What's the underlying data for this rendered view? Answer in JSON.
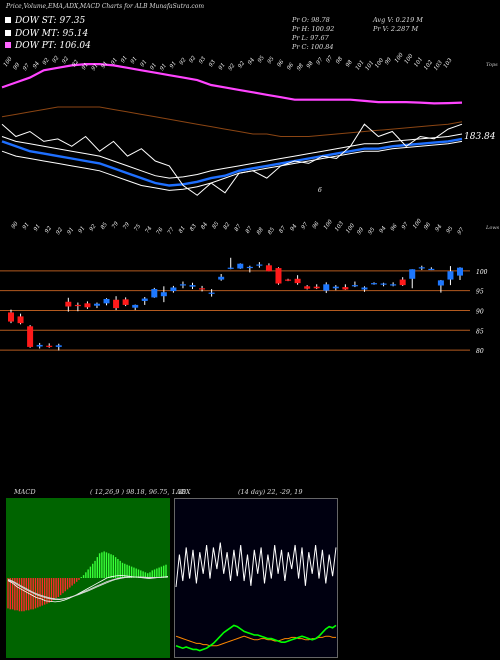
{
  "header": {
    "title": "Price,Volume,EMA,ADX,MACD Charts for ALB MunafaSutra.com"
  },
  "legend": [
    {
      "label": "DOW ST: 97.35",
      "color": "#ffffff"
    },
    {
      "label": "DOW MT: 95.14",
      "color": "#ffffff"
    },
    {
      "label": "DOW PT: 106.04",
      "color": "#ff66ff"
    }
  ],
  "stats": {
    "pr1": "Pr O: 98.78",
    "pr2": "Pr H: 100.92",
    "pr3": "Pr L: 97.67",
    "pr4": "Pr C: 100.84",
    "avg": "Avg V: 0.219 M",
    "prv": "Pr V: 2.287 M"
  },
  "chart_data": [
    {
      "type": "line",
      "name": "price_ema_panel",
      "top_labels": [
        "100",
        "99",
        "97",
        "94",
        "92",
        "92",
        "92",
        "92",
        "91",
        "91",
        "91",
        "91",
        "91",
        "91",
        "91",
        "91",
        "91",
        "91",
        "92",
        "92",
        "93",
        "93",
        "91",
        "92",
        "92",
        "94",
        "95",
        "95",
        "96",
        "96",
        "98",
        "98",
        "97",
        "97",
        "98",
        "98",
        "101",
        "101",
        "100",
        "99",
        "100",
        "100",
        "101",
        "102",
        "103",
        "103"
      ],
      "bottom_labels": [
        "90",
        "91",
        "91",
        "92",
        "92",
        "91",
        "91",
        "92",
        "85",
        "79",
        "79",
        "75",
        "74",
        "76",
        "77",
        "81",
        "83",
        "84",
        "85",
        "82",
        "87",
        "87",
        "88",
        "85",
        "87",
        "94",
        "97",
        "96",
        "100",
        "103",
        "100",
        "99",
        "95",
        "94",
        "96",
        "97",
        "100",
        "96",
        "94",
        "95",
        "97"
      ],
      "right_top_label": "Tops",
      "right_bottom_label": "Lows",
      "value_label": "183.84",
      "annotation": "6",
      "series": [
        {
          "color": "#ff44ff",
          "values": [
            190,
            192,
            194,
            197,
            198,
            199,
            199.5,
            199.5,
            199,
            198,
            197,
            196,
            195,
            194,
            193,
            191,
            190,
            189,
            188,
            187,
            186,
            185,
            185,
            185,
            185,
            185,
            184.5,
            184,
            184,
            184,
            183.8,
            183.5,
            183.6,
            183.8
          ]
        },
        {
          "color": "#8b4513",
          "values": [
            178,
            179,
            180,
            181,
            182,
            182,
            182,
            182,
            181,
            180,
            179,
            178,
            177,
            176,
            175,
            174,
            173,
            172,
            171,
            171,
            170,
            170,
            170,
            170.5,
            171,
            171.5,
            172,
            172.5,
            173,
            173.5,
            174,
            174.5,
            175,
            176
          ]
        },
        {
          "color": "#1e6fff",
          "values": [
            168,
            166,
            164,
            163,
            162,
            161,
            160,
            159,
            157,
            155,
            153,
            151,
            150,
            150.5,
            151.5,
            153,
            154,
            156,
            157,
            158,
            159,
            160,
            161,
            162,
            163,
            164,
            165,
            165,
            166,
            166.5,
            167,
            167.5,
            168,
            169
          ]
        },
        {
          "color": "#ffffff",
          "values": [
            164,
            162,
            161,
            160,
            159,
            158,
            157,
            156,
            154,
            152,
            150,
            149,
            148,
            148.5,
            149.5,
            151,
            153,
            155,
            156,
            157,
            158,
            159,
            160,
            161,
            162,
            163,
            164,
            164,
            165,
            165.5,
            166,
            166.5,
            167,
            168
          ]
        },
        {
          "color": "#ffffff",
          "values": [
            170,
            168,
            167,
            166,
            165,
            164,
            163,
            162,
            160,
            158,
            156,
            154,
            153,
            153.5,
            154.5,
            156,
            157,
            158,
            159,
            160,
            161,
            162,
            163,
            164,
            165,
            166,
            167,
            167,
            168,
            168.5,
            169,
            169.5,
            170,
            171
          ]
        },
        {
          "color": "#ffffff",
          "values": [
            175,
            170,
            172,
            168,
            169,
            166,
            170,
            164,
            168,
            162,
            165,
            160,
            158,
            150,
            146,
            151,
            147,
            155,
            156,
            153,
            158,
            160,
            159,
            162,
            161,
            166,
            175,
            170,
            172,
            166,
            170,
            169,
            173,
            175
          ]
        }
      ]
    },
    {
      "type": "candlestick",
      "name": "price_panel",
      "y_labels": [
        "100",
        "95",
        "90",
        "85",
        "80"
      ],
      "ylim": [
        78,
        104
      ],
      "candles": [
        {
          "o": 89.5,
          "h": 90.2,
          "l": 86.8,
          "c": 87.2
        },
        {
          "o": 88.5,
          "h": 89.2,
          "l": 86.5,
          "c": 86.8
        },
        {
          "o": 86.0,
          "h": 86.3,
          "l": 80.6,
          "c": 80.8
        },
        {
          "o": 80.9,
          "h": 81.8,
          "l": 80.4,
          "c": 81.3
        },
        {
          "o": 81.1,
          "h": 81.7,
          "l": 80.6,
          "c": 81.0
        },
        {
          "o": 80.8,
          "h": 81.6,
          "l": 79.9,
          "c": 81.2
        },
        {
          "o": 92.2,
          "h": 93.2,
          "l": 89.7,
          "c": 91.0
        },
        {
          "o": 91.4,
          "h": 92.0,
          "l": 89.8,
          "c": 91.2
        },
        {
          "o": 91.8,
          "h": 92.3,
          "l": 90.4,
          "c": 90.8
        },
        {
          "o": 91.2,
          "h": 92.0,
          "l": 90.6,
          "c": 91.7
        },
        {
          "o": 91.8,
          "h": 93.1,
          "l": 91.3,
          "c": 92.9
        },
        {
          "o": 92.7,
          "h": 93.6,
          "l": 90.1,
          "c": 90.6
        },
        {
          "o": 92.8,
          "h": 93.3,
          "l": 91.1,
          "c": 91.4
        },
        {
          "o": 90.7,
          "h": 91.5,
          "l": 90.1,
          "c": 91.4
        },
        {
          "o": 92.4,
          "h": 93.4,
          "l": 91.4,
          "c": 93.0
        },
        {
          "o": 93.3,
          "h": 95.7,
          "l": 93.2,
          "c": 95.4
        },
        {
          "o": 93.6,
          "h": 96.1,
          "l": 92.1,
          "c": 94.6
        },
        {
          "o": 94.9,
          "h": 96.2,
          "l": 94.5,
          "c": 95.8
        },
        {
          "o": 96.6,
          "h": 97.3,
          "l": 95.6,
          "c": 96.6
        },
        {
          "o": 96.0,
          "h": 97.0,
          "l": 95.4,
          "c": 96.4
        },
        {
          "o": 95.6,
          "h": 96.2,
          "l": 94.8,
          "c": 95.5
        },
        {
          "o": 94.5,
          "h": 95.4,
          "l": 93.5,
          "c": 94.5
        },
        {
          "o": 97.8,
          "h": 99.2,
          "l": 97.5,
          "c": 98.5
        },
        {
          "o": 100.7,
          "h": 103.3,
          "l": 100.4,
          "c": 100.8
        },
        {
          "o": 100.6,
          "h": 101.9,
          "l": 100.5,
          "c": 101.8
        },
        {
          "o": 101.0,
          "h": 101.3,
          "l": 99.6,
          "c": 101.0
        },
        {
          "o": 101.4,
          "h": 102.2,
          "l": 100.8,
          "c": 101.6
        },
        {
          "o": 101.4,
          "h": 101.9,
          "l": 99.9,
          "c": 99.9
        },
        {
          "o": 100.7,
          "h": 100.9,
          "l": 96.5,
          "c": 96.8
        },
        {
          "o": 97.8,
          "h": 98.0,
          "l": 97.4,
          "c": 97.7
        },
        {
          "o": 98.0,
          "h": 98.9,
          "l": 96.5,
          "c": 96.9
        },
        {
          "o": 96.1,
          "h": 96.4,
          "l": 95.3,
          "c": 95.5
        },
        {
          "o": 96.0,
          "h": 96.6,
          "l": 95.4,
          "c": 95.6
        },
        {
          "o": 95.0,
          "h": 97.1,
          "l": 94.4,
          "c": 96.6
        },
        {
          "o": 95.6,
          "h": 96.4,
          "l": 95.1,
          "c": 96.0
        },
        {
          "o": 95.9,
          "h": 96.6,
          "l": 95.2,
          "c": 95.3
        },
        {
          "o": 96.4,
          "h": 97.3,
          "l": 95.9,
          "c": 96.4
        },
        {
          "o": 95.3,
          "h": 96.1,
          "l": 94.7,
          "c": 95.8
        },
        {
          "o": 96.7,
          "h": 97.1,
          "l": 96.5,
          "c": 96.9
        },
        {
          "o": 96.7,
          "h": 97.0,
          "l": 96.1,
          "c": 96.8
        },
        {
          "o": 96.5,
          "h": 97.1,
          "l": 96.1,
          "c": 96.6
        },
        {
          "o": 97.8,
          "h": 98.4,
          "l": 96.2,
          "c": 96.4
        },
        {
          "o": 98.0,
          "h": 100.4,
          "l": 95.6,
          "c": 100.4
        },
        {
          "o": 100.8,
          "h": 101.3,
          "l": 100.2,
          "c": 100.9
        },
        {
          "o": 100.4,
          "h": 100.9,
          "l": 100.2,
          "c": 100.5
        },
        {
          "o": 96.3,
          "h": 97.7,
          "l": 94.5,
          "c": 97.6
        },
        {
          "o": 97.8,
          "h": 101.2,
          "l": 96.4,
          "c": 99.9
        },
        {
          "o": 98.8,
          "h": 100.9,
          "l": 97.7,
          "c": 100.8
        }
      ]
    },
    {
      "type": "bar",
      "name": "macd_panel",
      "title": "MACD",
      "params": "( 12,26,9 ) 98.18, 96.75,  1.38",
      "histogram": [
        -3.2,
        -3.3,
        -3.3,
        -3.4,
        -3.4,
        -3.5,
        -3.5,
        -3.5,
        -3.4,
        -3.4,
        -3.3,
        -3.3,
        -3.2,
        -3.1,
        -3.0,
        -2.9,
        -2.8,
        -2.7,
        -2.6,
        -2.5,
        -2.3,
        -2.1,
        -2.0,
        -1.8,
        -1.6,
        -1.4,
        -1.2,
        -1.0,
        -0.8,
        -0.6,
        -0.4,
        -0.2,
        0.1,
        0.3,
        0.6,
        0.9,
        1.2,
        1.5,
        1.8,
        2.2,
        2.6,
        2.7,
        2.8,
        2.7,
        2.6,
        2.5,
        2.4,
        2.2,
        2.0,
        1.8,
        1.6,
        1.5,
        1.4,
        1.3,
        1.2,
        1.1,
        1.0,
        0.9,
        0.8,
        0.7,
        0.6,
        0.5,
        0.6,
        0.8,
        0.9,
        1.0,
        1.1,
        1.2,
        1.3,
        1.4
      ],
      "lines": [
        [
          -1.0,
          -2.0,
          -3.5,
          -4.5,
          -5.5,
          -6.5,
          -7.5,
          -8.0,
          -8.8,
          -9.0,
          -9.2,
          -9.0,
          -8.5,
          -7.8,
          -7.0,
          -6.0,
          -5.0,
          -4.0,
          -3.0,
          -2.0,
          -1.0,
          0.0,
          0.5,
          0.8,
          1.0,
          0.8,
          0.6,
          0.4,
          0.2,
          0.0,
          -0.2,
          0.0,
          0.2,
          0.4,
          0.6
        ],
        [
          -0.8,
          -1.5,
          -2.6,
          -3.6,
          -4.6,
          -5.5,
          -6.4,
          -7.0,
          -7.6,
          -8.0,
          -8.3,
          -8.3,
          -8.0,
          -7.5,
          -6.9,
          -6.2,
          -5.4,
          -4.6,
          -3.8,
          -3.0,
          -2.2,
          -1.4,
          -0.8,
          -0.3,
          0.1,
          0.3,
          0.4,
          0.4,
          0.3,
          0.2,
          0.1,
          0.1,
          0.2,
          0.3,
          0.4
        ],
        [
          -0.5,
          -1.2,
          -2.2,
          -3.2,
          -4.2,
          -5.2,
          -6.0,
          -6.6,
          -7.2,
          -7.7,
          -8.0,
          -8.1,
          -7.9,
          -7.5,
          -7.0,
          -6.4,
          -5.7,
          -5.0,
          -4.2,
          -3.4,
          -2.6,
          -1.8,
          -1.1,
          -0.5,
          -0.1,
          0.2,
          0.3,
          0.4,
          0.4,
          0.3,
          0.2,
          0.2,
          0.2,
          0.3,
          0.4
        ]
      ]
    },
    {
      "type": "line",
      "name": "adx_panel",
      "title": "ADX",
      "params": "(14 day) 22,  -29,  19",
      "series": [
        {
          "color": "#ffffff",
          "values": [
            55,
            82,
            60,
            88,
            62,
            86,
            58,
            84,
            66,
            90,
            62,
            88,
            70,
            92,
            66,
            84,
            60,
            86,
            64,
            90,
            60,
            82,
            56,
            86,
            66,
            88,
            58,
            82,
            62,
            90,
            66,
            86,
            60,
            84,
            70,
            90,
            62,
            88,
            56,
            84,
            66,
            90,
            62,
            86,
            58,
            82,
            64,
            88
          ]
        },
        {
          "color": "#ff8800",
          "values": [
            14,
            13,
            12,
            11,
            10,
            9,
            8,
            8,
            7,
            7,
            6,
            6,
            6,
            7,
            8,
            9,
            10,
            11,
            12,
            13,
            14,
            13,
            12,
            11,
            11,
            12,
            12,
            11,
            11,
            10,
            10,
            11,
            12,
            12,
            13,
            13,
            12,
            12,
            11,
            11,
            12,
            12,
            13,
            13,
            14,
            14,
            13,
            13
          ]
        },
        {
          "color": "#00ff00",
          "values": [
            6,
            5,
            4,
            5,
            4,
            3,
            3,
            2,
            3,
            4,
            6,
            8,
            11,
            14,
            17,
            19,
            21,
            23,
            22,
            20,
            18,
            17,
            16,
            15,
            15,
            14,
            13,
            12,
            12,
            11,
            10,
            9,
            9,
            10,
            11,
            12,
            13,
            14,
            13,
            12,
            11,
            12,
            14,
            17,
            20,
            22,
            21,
            23
          ]
        }
      ]
    }
  ]
}
